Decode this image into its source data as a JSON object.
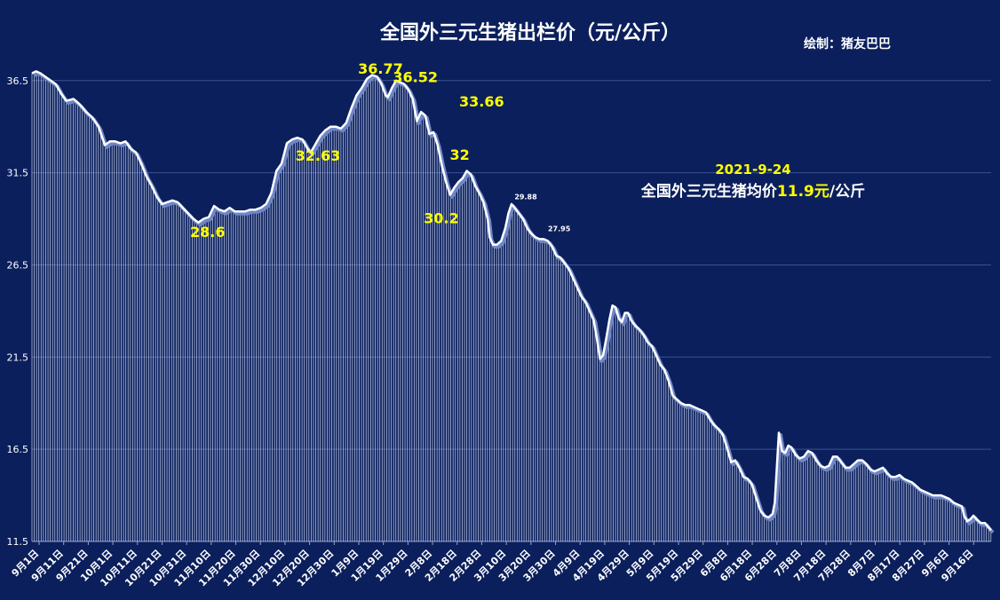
{
  "chart_data": {
    "type": "area",
    "title": "全国外三元生猪出栏价（元/公斤）",
    "credit": "绘制：猪友巴巴",
    "xlabel": "",
    "ylabel": "",
    "ylim": [
      11.5,
      37.5
    ],
    "yticks": [
      "36.5",
      "31.5",
      "26.5",
      "21.5",
      "16.5",
      "11.5"
    ],
    "grid": true,
    "legend": "none",
    "x_tick_labels": [
      "9月1日",
      "9月11日",
      "9月21日",
      "10月1日",
      "10月11日",
      "10月21日",
      "10月31日",
      "11月10日",
      "11月20日",
      "11月30日",
      "12月10日",
      "12月20日",
      "12月30日",
      "1月9日",
      "1月19日",
      "1月29日",
      "2月8日",
      "2月18日",
      "2月28日",
      "3月10日",
      "3月20日",
      "3月30日",
      "4月9日",
      "4月19日",
      "4月29日",
      "5月9日",
      "5月19日",
      "5月29日",
      "6月8日",
      "6月18日",
      "6月28日",
      "7月8日",
      "7月18日",
      "7月28日",
      "8月7日",
      "8月17日",
      "8月27日",
      "9月6日",
      "9月16日"
    ],
    "series_points": [
      [
        0,
        36.9
      ],
      [
        4,
        37.0
      ],
      [
        8,
        36.9
      ],
      [
        13,
        36.7
      ],
      [
        18,
        36.5
      ],
      [
        23,
        36.3
      ],
      [
        28,
        35.8
      ],
      [
        33,
        35.4
      ],
      [
        40,
        35.5
      ],
      [
        46,
        35.2
      ],
      [
        52,
        34.8
      ],
      [
        58,
        34.5
      ],
      [
        64,
        34.0
      ],
      [
        70,
        33.0
      ],
      [
        75,
        33.2
      ],
      [
        80,
        33.2
      ],
      [
        85,
        33.1
      ],
      [
        90,
        33.2
      ],
      [
        95,
        32.8
      ],
      [
        100,
        32.6
      ],
      [
        105,
        32.0
      ],
      [
        110,
        31.3
      ],
      [
        115,
        30.8
      ],
      [
        120,
        30.2
      ],
      [
        125,
        29.8
      ],
      [
        130,
        29.9
      ],
      [
        135,
        30.0
      ],
      [
        140,
        29.9
      ],
      [
        145,
        29.6
      ],
      [
        150,
        29.3
      ],
      [
        155,
        29.0
      ],
      [
        160,
        28.8
      ],
      [
        165,
        29.0
      ],
      [
        170,
        29.1
      ],
      [
        175,
        29.7
      ],
      [
        180,
        29.5
      ],
      [
        185,
        29.4
      ],
      [
        190,
        29.6
      ],
      [
        195,
        29.4
      ],
      [
        200,
        29.4
      ],
      [
        205,
        29.4
      ],
      [
        210,
        29.5
      ],
      [
        215,
        29.5
      ],
      [
        220,
        29.6
      ],
      [
        225,
        29.8
      ],
      [
        230,
        30.4
      ],
      [
        235,
        31.6
      ],
      [
        240,
        32.0
      ],
      [
        245,
        33.1
      ],
      [
        250,
        33.3
      ],
      [
        255,
        33.4
      ],
      [
        260,
        33.3
      ],
      [
        265,
        32.8
      ],
      [
        268,
        32.6
      ],
      [
        272,
        33.0
      ],
      [
        277,
        33.5
      ],
      [
        282,
        33.8
      ],
      [
        287,
        34.0
      ],
      [
        292,
        34.0
      ],
      [
        297,
        33.9
      ],
      [
        302,
        34.2
      ],
      [
        307,
        35.0
      ],
      [
        312,
        35.7
      ],
      [
        317,
        36.1
      ],
      [
        322,
        36.6
      ],
      [
        327,
        36.8
      ],
      [
        332,
        36.7
      ],
      [
        336,
        36.3
      ],
      [
        340,
        35.7
      ],
      [
        342,
        35.6
      ],
      [
        346,
        36.1
      ],
      [
        350,
        36.5
      ],
      [
        354,
        36.4
      ],
      [
        358,
        36.3
      ],
      [
        362,
        36.0
      ],
      [
        366,
        35.5
      ],
      [
        370,
        34.3
      ],
      [
        374,
        34.8
      ],
      [
        378,
        34.6
      ],
      [
        382,
        33.6
      ],
      [
        386,
        33.7
      ],
      [
        390,
        33.0
      ],
      [
        394,
        31.9
      ],
      [
        398,
        31.0
      ],
      [
        402,
        30.3
      ],
      [
        406,
        30.7
      ],
      [
        410,
        31.0
      ],
      [
        414,
        31.2
      ],
      [
        418,
        31.6
      ],
      [
        422,
        31.4
      ],
      [
        426,
        30.8
      ],
      [
        430,
        30.4
      ],
      [
        434,
        29.9
      ],
      [
        438,
        29.0
      ],
      [
        440,
        28.0
      ],
      [
        443,
        27.6
      ],
      [
        447,
        27.6
      ],
      [
        451,
        27.8
      ],
      [
        455,
        28.5
      ],
      [
        458,
        29.3
      ],
      [
        461,
        29.8
      ],
      [
        464,
        29.6
      ],
      [
        468,
        29.3
      ],
      [
        472,
        29.0
      ],
      [
        476,
        28.5
      ],
      [
        480,
        28.2
      ],
      [
        484,
        28.0
      ],
      [
        488,
        27.9
      ],
      [
        492,
        27.9
      ],
      [
        496,
        27.8
      ],
      [
        500,
        27.5
      ],
      [
        504,
        27.0
      ],
      [
        508,
        26.9
      ],
      [
        512,
        26.6
      ],
      [
        516,
        26.3
      ],
      [
        520,
        25.8
      ],
      [
        524,
        25.3
      ],
      [
        528,
        24.8
      ],
      [
        532,
        24.5
      ],
      [
        536,
        24.0
      ],
      [
        540,
        23.5
      ],
      [
        543,
        22.5
      ],
      [
        546,
        21.4
      ],
      [
        549,
        21.6
      ],
      [
        552,
        22.5
      ],
      [
        555,
        23.5
      ],
      [
        558,
        24.3
      ],
      [
        561,
        24.2
      ],
      [
        564,
        23.6
      ],
      [
        567,
        23.4
      ],
      [
        570,
        23.9
      ],
      [
        573,
        23.9
      ],
      [
        576,
        23.5
      ],
      [
        580,
        23.2
      ],
      [
        584,
        23.0
      ],
      [
        588,
        22.7
      ],
      [
        592,
        22.3
      ],
      [
        596,
        22.1
      ],
      [
        600,
        21.6
      ],
      [
        604,
        21.1
      ],
      [
        608,
        20.8
      ],
      [
        612,
        20.2
      ],
      [
        616,
        19.4
      ],
      [
        620,
        19.2
      ],
      [
        624,
        19.0
      ],
      [
        628,
        18.9
      ],
      [
        632,
        18.9
      ],
      [
        636,
        18.8
      ],
      [
        640,
        18.7
      ],
      [
        644,
        18.6
      ],
      [
        648,
        18.5
      ],
      [
        652,
        18.1
      ],
      [
        656,
        17.8
      ],
      [
        660,
        17.6
      ],
      [
        664,
        17.3
      ],
      [
        668,
        16.6
      ],
      [
        672,
        15.8
      ],
      [
        676,
        15.9
      ],
      [
        680,
        15.5
      ],
      [
        684,
        15.0
      ],
      [
        688,
        14.9
      ],
      [
        692,
        14.6
      ],
      [
        696,
        13.9
      ],
      [
        700,
        13.2
      ],
      [
        704,
        12.9
      ],
      [
        708,
        12.8
      ],
      [
        712,
        13.0
      ],
      [
        714,
        13.6
      ],
      [
        716,
        15.5
      ],
      [
        718,
        17.4
      ],
      [
        721,
        16.4
      ],
      [
        724,
        16.3
      ],
      [
        727,
        16.7
      ],
      [
        730,
        16.6
      ],
      [
        734,
        16.2
      ],
      [
        738,
        16.0
      ],
      [
        742,
        16.1
      ],
      [
        746,
        16.4
      ],
      [
        750,
        16.3
      ],
      [
        754,
        15.9
      ],
      [
        758,
        15.6
      ],
      [
        762,
        15.5
      ],
      [
        766,
        15.6
      ],
      [
        770,
        16.1
      ],
      [
        774,
        16.1
      ],
      [
        778,
        15.8
      ],
      [
        782,
        15.5
      ],
      [
        786,
        15.5
      ],
      [
        790,
        15.7
      ],
      [
        794,
        15.9
      ],
      [
        798,
        15.9
      ],
      [
        802,
        15.7
      ],
      [
        806,
        15.4
      ],
      [
        810,
        15.3
      ],
      [
        814,
        15.4
      ],
      [
        818,
        15.5
      ],
      [
        822,
        15.2
      ],
      [
        826,
        15.0
      ],
      [
        830,
        15.0
      ],
      [
        834,
        15.1
      ],
      [
        838,
        14.9
      ],
      [
        842,
        14.8
      ],
      [
        846,
        14.7
      ],
      [
        850,
        14.5
      ],
      [
        854,
        14.3
      ],
      [
        858,
        14.2
      ],
      [
        862,
        14.1
      ],
      [
        866,
        14.0
      ],
      [
        870,
        14.0
      ],
      [
        874,
        14.0
      ],
      [
        878,
        13.9
      ],
      [
        882,
        13.8
      ],
      [
        886,
        13.6
      ],
      [
        890,
        13.5
      ],
      [
        894,
        13.4
      ],
      [
        896,
        12.9
      ],
      [
        899,
        12.6
      ],
      [
        902,
        12.7
      ],
      [
        905,
        12.9
      ],
      [
        908,
        12.7
      ],
      [
        912,
        12.5
      ],
      [
        916,
        12.5
      ],
      [
        919,
        12.3
      ],
      [
        922,
        12.1
      ]
    ],
    "x_max": 922,
    "annotations": [
      {
        "text": "36.77",
        "x": 335,
        "y": 36.77,
        "size": "large"
      },
      {
        "text": "36.52",
        "x": 360,
        "y": 36.52,
        "size": "large"
      },
      {
        "text": "32.63",
        "x": 268,
        "y": 32.63,
        "size": "large"
      },
      {
        "text": "28.6",
        "x": 162,
        "y": 28.6,
        "size": "large"
      },
      {
        "text": "33.66",
        "x": 422,
        "y": 33.66,
        "size": "large"
      },
      {
        "text": "32",
        "x": 418,
        "y": 32.0,
        "size": "large"
      },
      {
        "text": "30.2",
        "x": 402,
        "y": 30.2,
        "size": "large"
      },
      {
        "text": "29.88",
        "x": 461,
        "y": 29.88,
        "size": "small"
      },
      {
        "text": "27.95",
        "x": 488,
        "y": 27.95,
        "size": "small"
      }
    ],
    "callout": {
      "date": "2021-9-24",
      "text_before": "全国外三元生猪均价",
      "value": "11.9元",
      "text_after": "/公斤"
    },
    "colors": {
      "background": "#0b1f5c",
      "line": "#ffffff",
      "shadow": "#6e86c7",
      "fill": "#dfe8ff",
      "label": "#ffff00",
      "grid": "#3b5293"
    }
  }
}
